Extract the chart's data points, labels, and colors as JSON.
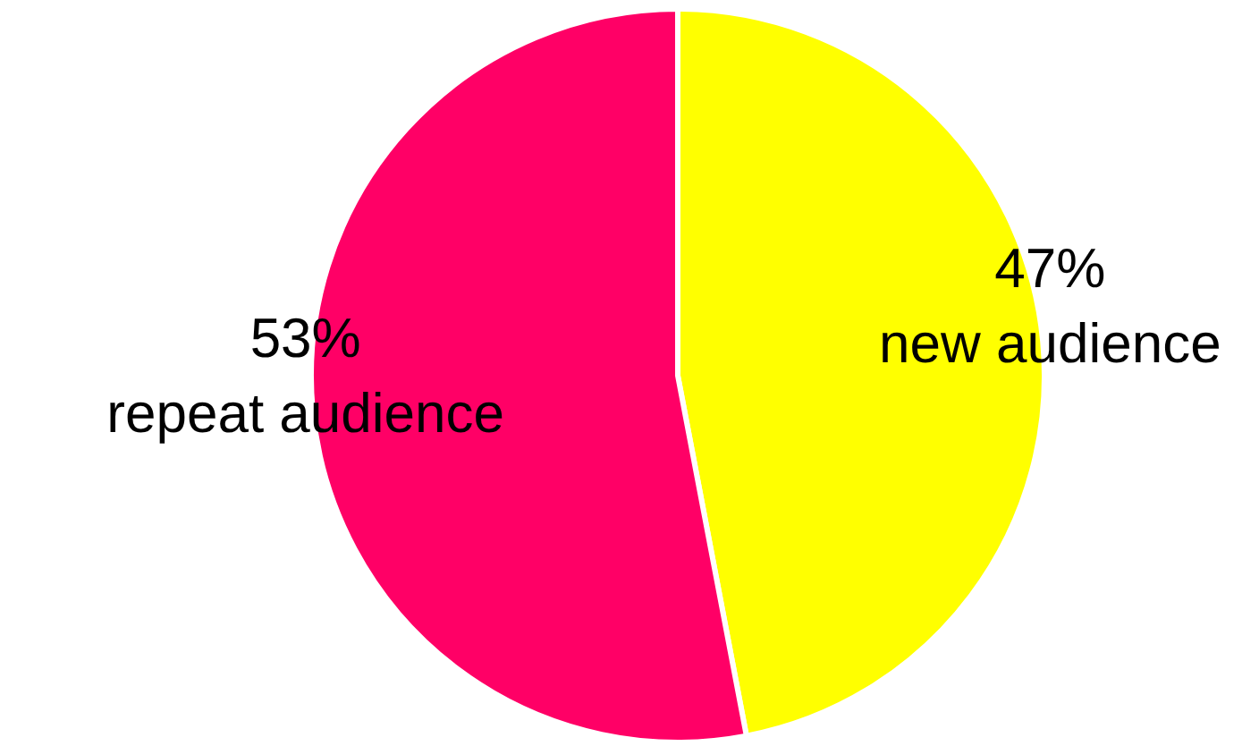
{
  "chart_data": {
    "type": "pie",
    "categories": [
      "new audience",
      "repeat audience"
    ],
    "values": [
      47,
      53
    ],
    "colors": [
      "#ffff00",
      "#ff0066"
    ],
    "value_labels": [
      "47%",
      "53%"
    ],
    "legend": false
  }
}
